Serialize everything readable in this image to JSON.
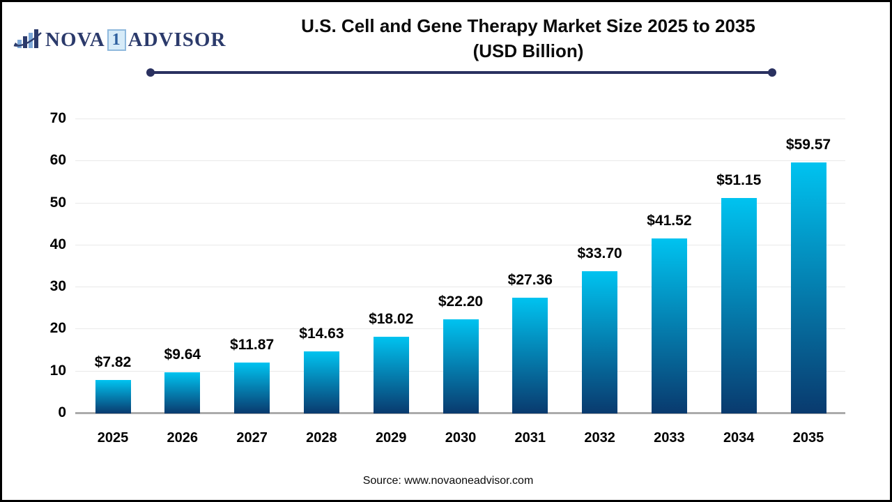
{
  "logo": {
    "icon": "bar-chart-swoosh-icon",
    "name_part1": "NOVA",
    "name_boxed": "1",
    "name_part2": "ADVISOR",
    "text_color": "#2b3a6b",
    "box_background": "#d6ebf8",
    "box_border": "#8fb9dd"
  },
  "header": {
    "title_line1": "U.S. Cell and Gene Therapy Market Size 2025 to 2035",
    "title_line2": "(USD Billion)",
    "divider_color": "#2a3160"
  },
  "chart_data": {
    "type": "bar",
    "title": "U.S. Cell and Gene Therapy Market Size 2025 to 2035 (USD Billion)",
    "categories": [
      "2025",
      "2026",
      "2027",
      "2028",
      "2029",
      "2030",
      "2031",
      "2032",
      "2033",
      "2034",
      "2035"
    ],
    "values": [
      7.82,
      9.64,
      11.87,
      14.63,
      18.02,
      22.2,
      27.36,
      33.7,
      41.52,
      51.15,
      59.57
    ],
    "value_labels": [
      "$7.82",
      "$9.64",
      "$11.87",
      "$14.63",
      "$18.02",
      "$22.20",
      "$27.36",
      "$33.70",
      "$41.52",
      "$51.15",
      "$59.57"
    ],
    "xlabel": "",
    "ylabel": "",
    "ylim": [
      0,
      70
    ],
    "yticks": [
      0,
      10,
      20,
      30,
      40,
      50,
      60,
      70
    ],
    "grid": true,
    "legend": false,
    "bar_gradient_top": "#00c3f0",
    "bar_gradient_bottom": "#093a6e",
    "gridline_color": "#e9e9e9",
    "axis_line_color": "#ababab",
    "label_color": "#000000"
  },
  "footer": {
    "source_text": "Source: www.novaoneadvisor.com"
  }
}
